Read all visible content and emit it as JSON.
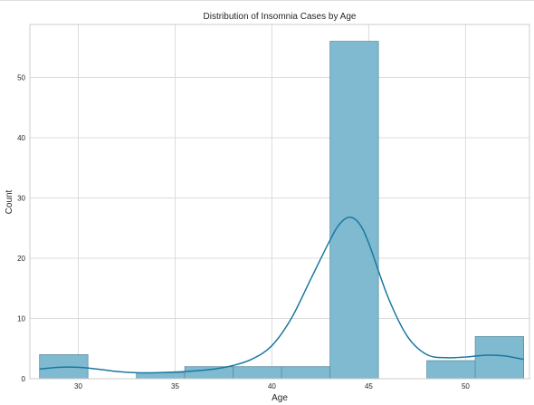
{
  "chart_data": {
    "type": "bar",
    "title": "Distribution of Insomnia Cases by Age",
    "xlabel": "Age",
    "ylabel": "Count",
    "xlim": [
      27.5,
      53.3
    ],
    "ylim": [
      0,
      58.8
    ],
    "xticks": [
      "30",
      "35",
      "40",
      "45",
      "50"
    ],
    "yticks": [
      "0",
      "10",
      "20",
      "30",
      "40",
      "50"
    ],
    "bins": [
      {
        "start": 28.0,
        "end": 30.5,
        "count": 4
      },
      {
        "start": 30.5,
        "end": 33.0,
        "count": 0
      },
      {
        "start": 33.0,
        "end": 35.5,
        "count": 1
      },
      {
        "start": 35.5,
        "end": 38.0,
        "count": 2
      },
      {
        "start": 38.0,
        "end": 40.5,
        "count": 2
      },
      {
        "start": 40.5,
        "end": 43.0,
        "count": 2
      },
      {
        "start": 43.0,
        "end": 45.5,
        "count": 56
      },
      {
        "start": 45.5,
        "end": 48.0,
        "count": 0
      },
      {
        "start": 48.0,
        "end": 50.5,
        "count": 3
      },
      {
        "start": 50.5,
        "end": 53.0,
        "count": 7
      }
    ],
    "kde": {
      "x": [
        28,
        29,
        30,
        31,
        32,
        33,
        34,
        35,
        36,
        37,
        38,
        39,
        40,
        41,
        42,
        43,
        43.5,
        44,
        44.5,
        45,
        46,
        47,
        48,
        49,
        50,
        51,
        52,
        53
      ],
      "y": [
        1.6,
        1.9,
        1.9,
        1.6,
        1.2,
        1.0,
        1.0,
        1.1,
        1.3,
        1.6,
        2.2,
        3.3,
        5.5,
        10.0,
        16.5,
        23.0,
        25.7,
        26.8,
        25.8,
        22.5,
        13.5,
        7.0,
        4.0,
        3.5,
        3.6,
        3.9,
        3.8,
        3.2
      ]
    },
    "grid": true,
    "legend": "none",
    "colors": {
      "bar_fill": "#7fbad1",
      "bar_edge": "#5f8fa3",
      "kde_line": "#1a78a0",
      "grid": "#dcdcdc"
    }
  }
}
